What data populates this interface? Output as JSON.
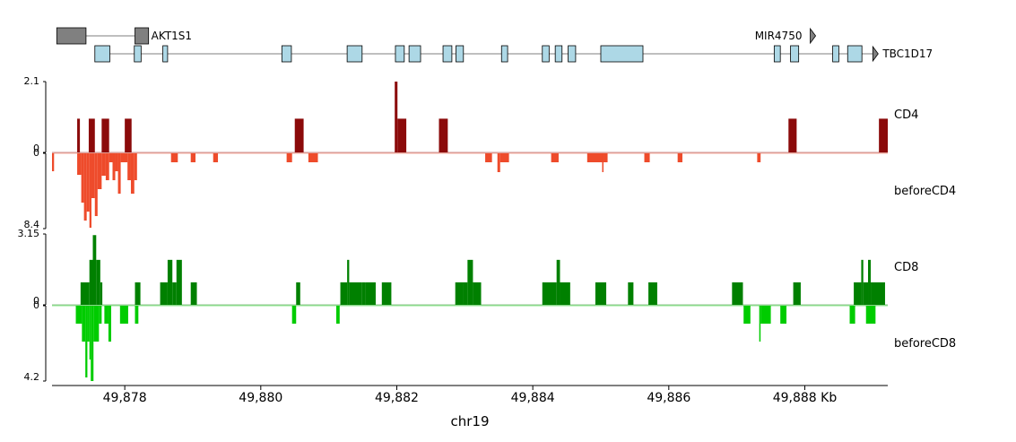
{
  "chart_data": {
    "type": "area",
    "chromosome": "chr19",
    "xlabel": "chr19",
    "x_range_kb": [
      49876.93,
      49889.22
    ],
    "x_ticks": [
      {
        "value": 49878,
        "label": "49,878"
      },
      {
        "value": 49880,
        "label": "49,880"
      },
      {
        "value": 49882,
        "label": "49,882"
      },
      {
        "value": 49884,
        "label": "49,884"
      },
      {
        "value": 49886,
        "label": "49,886"
      },
      {
        "value": 49888,
        "label": "49,888 Kb"
      }
    ],
    "genes": [
      {
        "name": "AKT1S1",
        "strand": "-",
        "color": "#808080",
        "span": [
          49877.0,
          49878.35
        ],
        "exons": [
          [
            49877.0,
            49877.43
          ],
          [
            49878.15,
            49878.35
          ]
        ]
      },
      {
        "name": "MIR4750",
        "strand": "+",
        "color": "#808080",
        "span": [
          49888.0,
          49888.08
        ],
        "exons": []
      },
      {
        "name": "TBC1D17",
        "strand": "+",
        "color": "#add8e6",
        "span": [
          49877.56,
          49889.0
        ],
        "exons": [
          [
            49877.56,
            49877.78
          ],
          [
            49878.14,
            49878.24
          ],
          [
            49878.56,
            49878.63
          ],
          [
            49880.31,
            49880.45
          ],
          [
            49881.27,
            49881.49
          ],
          [
            49881.98,
            49882.11
          ],
          [
            49882.18,
            49882.35
          ],
          [
            49882.68,
            49882.81
          ],
          [
            49882.87,
            49882.98
          ],
          [
            49883.54,
            49883.63
          ],
          [
            49884.14,
            49884.24
          ],
          [
            49884.33,
            49884.43
          ],
          [
            49884.52,
            49884.63
          ],
          [
            49885.0,
            49885.62
          ],
          [
            49887.55,
            49887.64
          ],
          [
            49887.79,
            49887.91
          ],
          [
            49888.41,
            49888.5
          ],
          [
            49888.63,
            49888.84
          ]
        ]
      }
    ],
    "tracks": [
      {
        "name": "CD4",
        "color": "#8b0a0a",
        "direction": "up",
        "ylim": [
          0,
          2.1
        ],
        "tick_labels": [
          "2.1",
          "0"
        ],
        "segments": [
          [
            49877.3,
            49877.34,
            1.0
          ],
          [
            49877.47,
            49877.56,
            1.0
          ],
          [
            49877.66,
            49877.77,
            1.0
          ],
          [
            49878.0,
            49878.1,
            1.0
          ],
          [
            49880.5,
            49880.63,
            1.0
          ],
          [
            49881.97,
            49882.01,
            2.1
          ],
          [
            49882.01,
            49882.14,
            1.0
          ],
          [
            49882.62,
            49882.75,
            1.0
          ],
          [
            49887.76,
            49887.88,
            1.0
          ],
          [
            49889.09,
            49889.22,
            1.0
          ]
        ]
      },
      {
        "name": "beforeCD4",
        "color": "#ee4b2b",
        "direction": "down",
        "ylim": [
          0,
          8.4
        ],
        "tick_labels": [
          "0",
          "8.4"
        ],
        "segments": [
          [
            49876.93,
            49876.96,
            2.0
          ],
          [
            49877.3,
            49877.36,
            2.4
          ],
          [
            49877.36,
            49877.4,
            5.5
          ],
          [
            49877.4,
            49877.44,
            7.5
          ],
          [
            49877.44,
            49877.48,
            6.5
          ],
          [
            49877.48,
            49877.51,
            8.3
          ],
          [
            49877.51,
            49877.56,
            5.0
          ],
          [
            49877.56,
            49877.6,
            7.0
          ],
          [
            49877.6,
            49877.66,
            4.0
          ],
          [
            49877.66,
            49877.72,
            2.5
          ],
          [
            49877.72,
            49877.77,
            3.0
          ],
          [
            49877.77,
            49877.82,
            1.0
          ],
          [
            49877.82,
            49877.86,
            3.0
          ],
          [
            49877.86,
            49877.9,
            2.0
          ],
          [
            49877.9,
            49877.94,
            4.5
          ],
          [
            49877.94,
            49878.04,
            1.0
          ],
          [
            49878.04,
            49878.09,
            3.0
          ],
          [
            49878.09,
            49878.14,
            4.5
          ],
          [
            49878.14,
            49878.18,
            3.0
          ],
          [
            49878.68,
            49878.78,
            1.0
          ],
          [
            49878.97,
            49879.04,
            1.0
          ],
          [
            49879.3,
            49879.37,
            1.0
          ],
          [
            49880.38,
            49880.46,
            1.0
          ],
          [
            49880.7,
            49880.84,
            1.0
          ],
          [
            49883.3,
            49883.4,
            1.0
          ],
          [
            49883.48,
            49883.52,
            2.1
          ],
          [
            49883.52,
            49883.65,
            1.0
          ],
          [
            49884.27,
            49884.38,
            1.0
          ],
          [
            49884.8,
            49885.02,
            1.0
          ],
          [
            49885.02,
            49885.04,
            2.1
          ],
          [
            49885.04,
            49885.1,
            1.0
          ],
          [
            49885.64,
            49885.72,
            1.0
          ],
          [
            49886.13,
            49886.2,
            1.0
          ],
          [
            49887.3,
            49887.35,
            1.0
          ]
        ]
      },
      {
        "name": "CD8",
        "color": "#008000",
        "direction": "up",
        "ylim": [
          0,
          3.15
        ],
        "tick_labels": [
          "3.15",
          "0"
        ],
        "segments": [
          [
            49877.35,
            49877.48,
            1.0
          ],
          [
            49877.48,
            49877.53,
            2.0
          ],
          [
            49877.53,
            49877.58,
            3.1
          ],
          [
            49877.58,
            49877.64,
            2.0
          ],
          [
            49877.64,
            49877.67,
            1.0
          ],
          [
            49878.15,
            49878.23,
            1.0
          ],
          [
            49878.52,
            49878.63,
            1.0
          ],
          [
            49878.63,
            49878.7,
            2.0
          ],
          [
            49878.7,
            49878.76,
            1.0
          ],
          [
            49878.76,
            49878.84,
            2.0
          ],
          [
            49878.97,
            49879.06,
            1.0
          ],
          [
            49880.52,
            49880.58,
            1.0
          ],
          [
            49881.17,
            49881.27,
            1.0
          ],
          [
            49881.27,
            49881.3,
            2.0
          ],
          [
            49881.3,
            49881.49,
            1.0
          ],
          [
            49881.49,
            49881.54,
            1.0
          ],
          [
            49881.54,
            49881.69,
            1.0
          ],
          [
            49881.78,
            49881.92,
            1.0
          ],
          [
            49882.86,
            49882.97,
            1.0
          ],
          [
            49882.97,
            49883.04,
            1.0
          ],
          [
            49883.04,
            49883.12,
            2.0
          ],
          [
            49883.12,
            49883.24,
            1.0
          ],
          [
            49884.14,
            49884.35,
            1.0
          ],
          [
            49884.35,
            49884.4,
            2.0
          ],
          [
            49884.4,
            49884.55,
            1.0
          ],
          [
            49884.92,
            49885.08,
            1.0
          ],
          [
            49885.4,
            49885.48,
            1.0
          ],
          [
            49885.7,
            49885.83,
            1.0
          ],
          [
            49886.93,
            49887.09,
            1.0
          ],
          [
            49887.83,
            49887.94,
            1.0
          ],
          [
            49888.72,
            49888.83,
            1.0
          ],
          [
            49888.83,
            49888.86,
            2.0
          ],
          [
            49888.86,
            49888.93,
            1.0
          ],
          [
            49888.93,
            49888.97,
            2.0
          ],
          [
            49888.97,
            49889.18,
            1.0
          ]
        ]
      },
      {
        "name": "beforeCD8",
        "color": "#00cc00",
        "direction": "down",
        "ylim": [
          0,
          4.2
        ],
        "tick_labels": [
          "0",
          "4.2"
        ],
        "segments": [
          [
            49877.28,
            49877.37,
            1.0
          ],
          [
            49877.37,
            49877.42,
            2.0
          ],
          [
            49877.42,
            49877.45,
            4.0
          ],
          [
            49877.45,
            49877.48,
            2.0
          ],
          [
            49877.48,
            49877.5,
            3.0
          ],
          [
            49877.5,
            49877.54,
            4.2
          ],
          [
            49877.54,
            49877.62,
            2.0
          ],
          [
            49877.62,
            49877.66,
            1.0
          ],
          [
            49877.7,
            49877.76,
            1.0
          ],
          [
            49877.76,
            49877.8,
            2.0
          ],
          [
            49877.93,
            49878.05,
            1.0
          ],
          [
            49878.15,
            49878.2,
            1.0
          ],
          [
            49880.46,
            49880.52,
            1.0
          ],
          [
            49881.11,
            49881.16,
            1.0
          ],
          [
            49887.1,
            49887.2,
            1.0
          ],
          [
            49887.33,
            49887.35,
            2.0
          ],
          [
            49887.35,
            49887.5,
            1.0
          ],
          [
            49887.64,
            49887.73,
            1.0
          ],
          [
            49888.66,
            49888.74,
            1.0
          ],
          [
            49888.9,
            49889.04,
            1.0
          ]
        ]
      }
    ]
  }
}
